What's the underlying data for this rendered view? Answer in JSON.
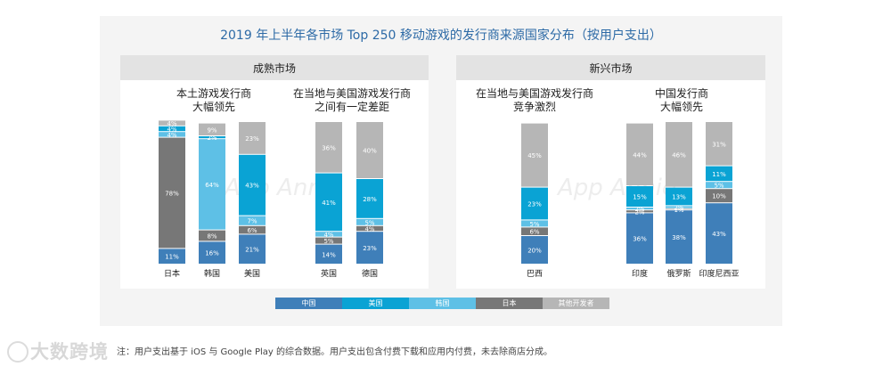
{
  "title": "2019 年上半年各市场 Top 250 移动游戏的发行商来源国家分布（按用户支出）",
  "footnote": "注：用户支出基于 iOS 与 Google Play 的综合数据。用户支出包含付费下载和应用内付费，未去除商店分成。",
  "brand": "大数跨境",
  "watermark": "App Annie",
  "colors": {
    "中国": "#3f7fb9",
    "美国": "#0aa3d4",
    "韩国": "#5ec0e6",
    "日本": "#777777",
    "其他开发者": "#b6b6b6"
  },
  "legend": [
    "中国",
    "美国",
    "韩国",
    "日本",
    "其他开发者"
  ],
  "chart_data": {
    "type": "bar",
    "stacked": true,
    "title": "2019 年上半年各市场 Top 250 移动游戏的发行商来源国家分布（按用户支出）",
    "series_order": [
      "中国",
      "日本",
      "韩国",
      "美国",
      "其他开发者"
    ],
    "ylim": [
      0,
      100
    ],
    "markets": [
      {
        "name": "成熟市场",
        "groups": [
          {
            "label": "本土游戏发行商\n大幅领先",
            "bars": [
              {
                "country": "日本",
                "segments": {
                  "中国": 11,
                  "日本": 78,
                  "韩国": 4,
                  "美国": 4,
                  "其他开发者": 4
                }
              },
              {
                "country": "韩国",
                "segments": {
                  "中国": 16,
                  "日本": 8,
                  "韩国": 64,
                  "美国": 2,
                  "其他开发者": 9
                }
              },
              {
                "country": "美国",
                "segments": {
                  "中国": 21,
                  "日本": 6,
                  "韩国": 7,
                  "美国": 43,
                  "其他开发者": 23
                }
              }
            ]
          },
          {
            "label": "在当地与美国游戏发行商\n之间有一定差距",
            "bars": [
              {
                "country": "英国",
                "segments": {
                  "中国": 14,
                  "日本": 5,
                  "韩国": 4,
                  "美国": 41,
                  "其他开发者": 36
                }
              },
              {
                "country": "德国",
                "segments": {
                  "中国": 23,
                  "日本": 4,
                  "韩国": 5,
                  "美国": 28,
                  "其他开发者": 40
                }
              }
            ]
          }
        ]
      },
      {
        "name": "新兴市场",
        "groups": [
          {
            "label": "在当地与美国游戏发行商\n竞争激烈",
            "bars": [
              {
                "country": "巴西",
                "segments": {
                  "中国": 20,
                  "日本": 6,
                  "韩国": 5,
                  "美国": 23,
                  "其他开发者": 45
                }
              }
            ]
          },
          {
            "label": "中国发行商\n大幅领先",
            "bars": [
              {
                "country": "印度",
                "segments": {
                  "中国": 36,
                  "日本": 2,
                  "韩国": 2,
                  "美国": 15,
                  "其他开发者": 44
                }
              },
              {
                "country": "俄罗斯",
                "segments": {
                  "中国": 38,
                  "日本": 1,
                  "韩国": 2,
                  "美国": 13,
                  "其他开发者": 46
                }
              },
              {
                "country": "印度尼西亚",
                "segments": {
                  "中国": 43,
                  "日本": 10,
                  "韩国": 5,
                  "美国": 11,
                  "其他开发者": 31
                }
              }
            ]
          }
        ]
      }
    ]
  }
}
